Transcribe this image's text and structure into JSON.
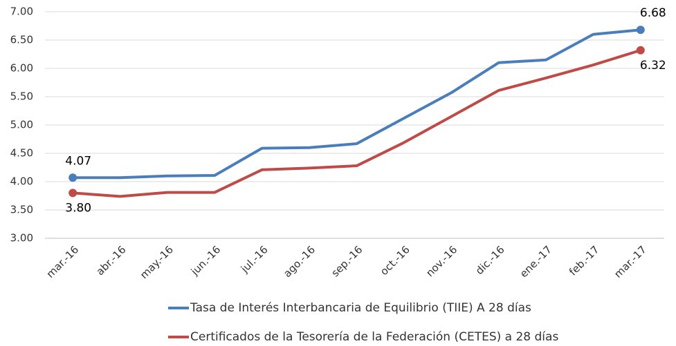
{
  "chart_data": {
    "type": "line",
    "categories": [
      "mar.-16",
      "abr.-16",
      "may.-16",
      "jun.-16",
      "jul.-16",
      "ago.-16",
      "sep.-16",
      "oct.-16",
      "nov.-16",
      "dic.-16",
      "ene.-17",
      "feb.-17",
      "mar.-17"
    ],
    "series": [
      {
        "name": "Tasa de Interés Interbancaria de Equilibrio (TIIE) A 28 días",
        "color": "#4a7ebb",
        "values": [
          4.07,
          4.07,
          4.1,
          4.11,
          4.59,
          4.6,
          4.67,
          5.12,
          5.57,
          6.1,
          6.15,
          6.6,
          6.68
        ],
        "value_labels": [
          "4.07",
          null,
          null,
          null,
          null,
          null,
          null,
          null,
          null,
          null,
          null,
          null,
          "6.68"
        ]
      },
      {
        "name": "Certificados de la Tesorería de la Federación (CETES) a 28 días",
        "color": "#be4b48",
        "values": [
          3.8,
          3.74,
          3.81,
          3.81,
          4.21,
          4.24,
          4.28,
          4.69,
          5.15,
          5.61,
          5.83,
          6.06,
          6.32
        ],
        "value_labels": [
          "3.80",
          null,
          null,
          null,
          null,
          null,
          null,
          null,
          null,
          null,
          null,
          null,
          "6.32"
        ]
      }
    ],
    "ylim": [
      3,
      7
    ],
    "yticks": [
      {
        "value": 3,
        "label": "3.00"
      },
      {
        "value": 3.5,
        "label": "3.50"
      },
      {
        "value": 4,
        "label": "4.00"
      },
      {
        "value": 4.5,
        "label": "4.50"
      },
      {
        "value": 5,
        "label": "5.00"
      },
      {
        "value": 5.5,
        "label": "5.50"
      },
      {
        "value": 6,
        "label": "6.00"
      },
      {
        "value": 6.5,
        "label": "6.50"
      },
      {
        "value": 7,
        "label": "7.00"
      }
    ],
    "grid": true,
    "legend": "bottom"
  }
}
